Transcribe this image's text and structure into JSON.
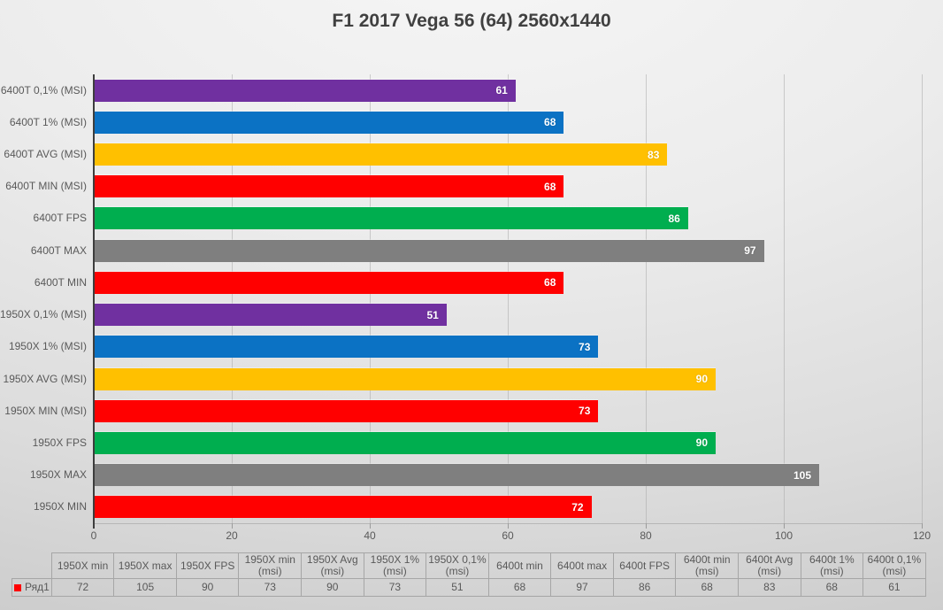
{
  "title": "F1 2017 Vega 56 (64) 2560x1440",
  "chart_data": {
    "type": "bar",
    "orientation": "horizontal",
    "title": "F1 2017 Vega 56 (64) 2560x1440",
    "categories": [
      "6400T 0,1% (MSI)",
      "6400T 1% (MSI)",
      "6400T AVG (MSI)",
      "6400T MIN (MSI)",
      "6400T FPS",
      "6400T MAX",
      "6400T MIN",
      "1950X 0,1% (MSI)",
      "1950X 1% (MSI)",
      "1950X AVG (MSI)",
      "1950X MIN (MSI)",
      "1950X FPS",
      "1950X MAX",
      "1950X MIN"
    ],
    "values": [
      61,
      68,
      83,
      68,
      86,
      97,
      68,
      51,
      73,
      90,
      73,
      90,
      105,
      72
    ],
    "bar_colors": [
      "#7030A0",
      "#0B72C4",
      "#FFC000",
      "#FF0000",
      "#00AE4F",
      "#7F7F7F",
      "#FF0000",
      "#7030A0",
      "#0B72C4",
      "#FFC000",
      "#FF0000",
      "#00AE4F",
      "#7F7F7F",
      "#FF0000"
    ],
    "value_label_color": "#FFFFFF",
    "xlabel": "",
    "ylabel": "",
    "xlim": [
      0,
      120
    ],
    "x_ticks": [
      0,
      20,
      40,
      60,
      80,
      100,
      120
    ],
    "grid": "vertical",
    "legend_position": "table-bottom"
  },
  "table": {
    "legend_label": "Ряд1",
    "legend_color": "#FF0000",
    "headers": [
      "1950X min",
      "1950X max",
      "1950X FPS",
      "1950X min (msi)",
      "1950X Avg (msi)",
      "1950X 1% (msi)",
      "1950X 0,1% (msi)",
      "6400t min",
      "6400t max",
      "6400t FPS",
      "6400t min (msi)",
      "6400t Avg (msi)",
      "6400t 1% (msi)",
      "6400t 0,1% (msi)"
    ],
    "values": [
      72,
      105,
      90,
      73,
      90,
      73,
      51,
      68,
      97,
      86,
      68,
      83,
      68,
      61
    ]
  }
}
